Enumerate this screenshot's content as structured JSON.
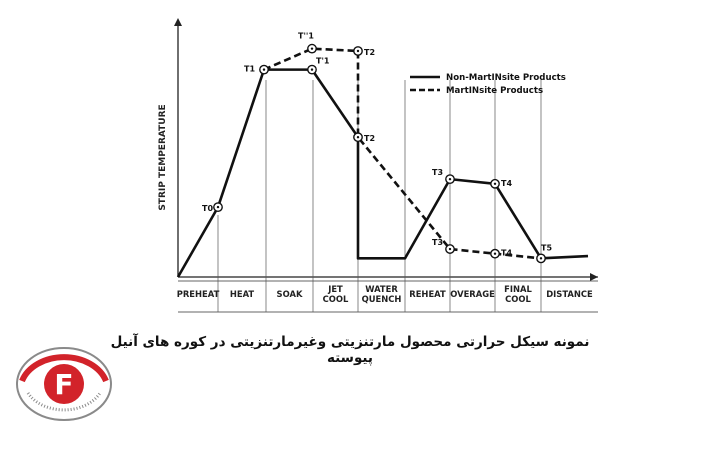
{
  "chart_data": {
    "type": "line",
    "title": "",
    "ylabel": "STRIP TEMPERATURE",
    "xlabel": "DISTANCE",
    "stages": [
      "PREHEAT",
      "HEAT",
      "SOAK",
      "JET\nCOOL",
      "WATER\nQUENCH",
      "REHEAT",
      "OVERAGE",
      "FINAL\nCOOL"
    ],
    "legend": {
      "position": "top-right"
    },
    "grid": false,
    "series": [
      {
        "name": "Non-MartINsite Products",
        "style": "solid",
        "points": [
          {
            "x": 0.0,
            "y": 0
          },
          {
            "x": 1.0,
            "y": 30
          },
          {
            "x": 2.0,
            "y": 89,
            "label": "T1"
          },
          {
            "x": 3.0,
            "y": 89,
            "label": "T'1"
          },
          {
            "x": 4.0,
            "y": 60,
            "label": "T2"
          },
          {
            "x": 4.0,
            "y": 8
          },
          {
            "x": 5.0,
            "y": 8
          },
          {
            "x": 6.0,
            "y": 42,
            "label": "T3"
          },
          {
            "x": 7.0,
            "y": 40,
            "label": "T4"
          },
          {
            "x": 8.0,
            "y": 8,
            "label": "T5"
          },
          {
            "x": 9.0,
            "y": 9
          }
        ]
      },
      {
        "name": "MartINsite Products",
        "style": "dashed",
        "points": [
          {
            "x": 2.0,
            "y": 89
          },
          {
            "x": 3.0,
            "y": 98,
            "label": "T''1"
          },
          {
            "x": 4.0,
            "y": 97,
            "label": "T2"
          },
          {
            "x": 4.0,
            "y": 60
          },
          {
            "x": 6.0,
            "y": 12,
            "label": "T3"
          },
          {
            "x": 7.0,
            "y": 10,
            "label": "T4"
          },
          {
            "x": 8.0,
            "y": 8
          }
        ]
      }
    ],
    "markers": [
      {
        "x": 1.0,
        "y": 30,
        "label": "T0"
      }
    ]
  },
  "caption": "نمونه سیکل حرارتی محصول مارتنزیتی وغیرمارتنزیتی در کوره های آنیل پیوسته",
  "logo": {
    "letter": "F",
    "colors": {
      "red": "#d2232a",
      "gray": "#8a8a8a"
    }
  }
}
